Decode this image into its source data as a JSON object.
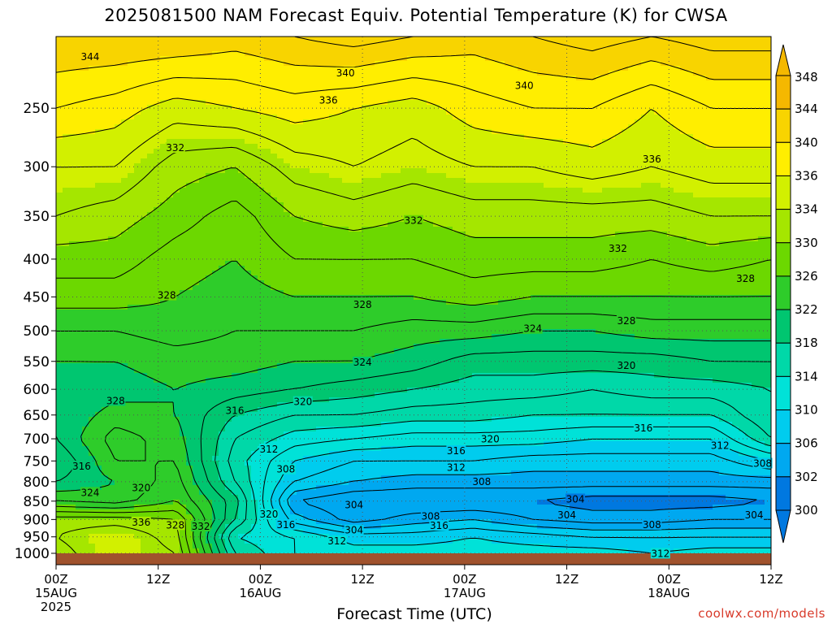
{
  "chart_data": {
    "type": "heatmap",
    "title": "2025081500 NAM Forecast Equiv. Potential Temperature (K) for CWSA",
    "xlabel": "Forecast Time (UTC)",
    "ylabel": "",
    "credit": "coolwx.com/models",
    "y_axis": {
      "scale": "log-pressure",
      "range": [
        200,
        1000
      ],
      "inverted": true,
      "ticks": [
        250,
        300,
        350,
        400,
        450,
        500,
        550,
        600,
        650,
        700,
        750,
        800,
        850,
        900,
        950,
        1000
      ]
    },
    "x_axis": {
      "range_hours": [
        0,
        84
      ],
      "ticks": [
        {
          "hour": 0,
          "label": "00Z",
          "date": "15AUG",
          "year": "2025"
        },
        {
          "hour": 12,
          "label": "12Z"
        },
        {
          "hour": 24,
          "label": "00Z",
          "date": "16AUG"
        },
        {
          "hour": 36,
          "label": "12Z"
        },
        {
          "hour": 48,
          "label": "00Z",
          "date": "17AUG"
        },
        {
          "hour": 60,
          "label": "12Z"
        },
        {
          "hour": 72,
          "label": "00Z",
          "date": "18AUG"
        },
        {
          "hour": 84,
          "label": "12Z"
        }
      ]
    },
    "grid": true,
    "colorbar": {
      "ticks": [
        348,
        344,
        340,
        336,
        334,
        330,
        326,
        322,
        318,
        314,
        310,
        306,
        302,
        300
      ],
      "bands": [
        {
          "value": 346,
          "color": "#f5b800"
        },
        {
          "value": 342,
          "color": "#f8d400"
        },
        {
          "value": 338,
          "color": "#ffee00"
        },
        {
          "value": 335,
          "color": "#d2f000"
        },
        {
          "value": 332,
          "color": "#a5e600"
        },
        {
          "value": 328,
          "color": "#6cd800"
        },
        {
          "value": 324,
          "color": "#2ecc2a"
        },
        {
          "value": 320,
          "color": "#00c670"
        },
        {
          "value": 316,
          "color": "#00d8a8"
        },
        {
          "value": 312,
          "color": "#00e2d8"
        },
        {
          "value": 308,
          "color": "#00ccee"
        },
        {
          "value": 304,
          "color": "#00a8f0"
        },
        {
          "value": 301,
          "color": "#0078e0"
        }
      ]
    },
    "levels_thetae": [
      {
        "p": 200,
        "values": [
          344,
          344,
          344,
          343,
          344,
          345,
          344,
          343,
          344,
          345,
          344,
          345,
          345
        ]
      },
      {
        "p": 250,
        "values": [
          340,
          339,
          337,
          338,
          339,
          338,
          337,
          339,
          340,
          340,
          338,
          340,
          340
        ]
      },
      {
        "p": 300,
        "values": [
          336,
          336,
          333,
          332,
          335,
          336,
          335,
          336,
          336,
          337,
          336,
          337,
          337
        ]
      },
      {
        "p": 350,
        "values": [
          334,
          333,
          331,
          329,
          332,
          333,
          332,
          333,
          333,
          333,
          333,
          334,
          334
        ]
      },
      {
        "p": 400,
        "values": [
          331,
          331,
          329,
          328,
          330,
          330,
          330,
          331,
          331,
          331,
          330,
          331,
          330
        ]
      },
      {
        "p": 450,
        "values": [
          329,
          329,
          328,
          327,
          328,
          328,
          328,
          329,
          328,
          328,
          328,
          328,
          328
        ]
      },
      {
        "p": 500,
        "values": [
          326,
          326,
          327,
          326,
          326,
          326,
          325,
          325,
          324,
          324,
          325,
          325,
          325
        ]
      },
      {
        "p": 550,
        "values": [
          324,
          324,
          325,
          325,
          324,
          324,
          323,
          321,
          321,
          321,
          321,
          322,
          322
        ]
      },
      {
        "p": 600,
        "values": [
          322,
          323,
          324,
          323,
          322,
          321,
          320,
          319,
          319,
          318,
          319,
          319,
          320
        ]
      },
      {
        "p": 650,
        "values": [
          322,
          325,
          324,
          320,
          318,
          318,
          317,
          317,
          316,
          316,
          316,
          316,
          320
        ]
      },
      {
        "p": 700,
        "values": [
          322,
          327,
          325,
          318,
          315,
          314,
          313,
          313,
          313,
          312,
          312,
          312,
          318
        ]
      },
      {
        "p": 750,
        "values": [
          320,
          326,
          326,
          317,
          312,
          310,
          310,
          310,
          309,
          309,
          309,
          309,
          312
        ]
      },
      {
        "p": 800,
        "values": [
          322,
          324,
          327,
          318,
          310,
          308,
          307,
          307,
          307,
          307,
          307,
          307,
          307
        ]
      },
      {
        "p": 850,
        "values": [
          326,
          325,
          328,
          321,
          306,
          304,
          304,
          304,
          304,
          303,
          303,
          303,
          304
        ]
      },
      {
        "p": 900,
        "values": [
          333,
          333,
          332,
          320,
          309,
          305,
          307,
          308,
          306,
          305,
          305,
          306,
          306
        ]
      },
      {
        "p": 950,
        "values": [
          334,
          336,
          333,
          316,
          314,
          311,
          311,
          312,
          311,
          310,
          310,
          310,
          310
        ]
      },
      {
        "p": 1000,
        "values": [
          333,
          336,
          334,
          318,
          314,
          313,
          313,
          313,
          313,
          313,
          312,
          313,
          313
        ]
      }
    ],
    "contour_labels": [
      {
        "text": "344",
        "hour": 4,
        "p": 213
      },
      {
        "text": "340",
        "hour": 34,
        "p": 224
      },
      {
        "text": "340",
        "hour": 55,
        "p": 233
      },
      {
        "text": "336",
        "hour": 32,
        "p": 244
      },
      {
        "text": "332",
        "hour": 14,
        "p": 283
      },
      {
        "text": "336",
        "hour": 70,
        "p": 293
      },
      {
        "text": "332",
        "hour": 42,
        "p": 355
      },
      {
        "text": "332",
        "hour": 66,
        "p": 387
      },
      {
        "text": "328",
        "hour": 81,
        "p": 425
      },
      {
        "text": "328",
        "hour": 13,
        "p": 448
      },
      {
        "text": "328",
        "hour": 36,
        "p": 461
      },
      {
        "text": "328",
        "hour": 67,
        "p": 485
      },
      {
        "text": "324",
        "hour": 56,
        "p": 497
      },
      {
        "text": "324",
        "hour": 36,
        "p": 552
      },
      {
        "text": "320",
        "hour": 67,
        "p": 557
      },
      {
        "text": "328",
        "hour": 7,
        "p": 622
      },
      {
        "text": "320",
        "hour": 29,
        "p": 624
      },
      {
        "text": "316",
        "hour": 21,
        "p": 641
      },
      {
        "text": "316",
        "hour": 69,
        "p": 677
      },
      {
        "text": "320",
        "hour": 51,
        "p": 701
      },
      {
        "text": "312",
        "hour": 25,
        "p": 723
      },
      {
        "text": "316",
        "hour": 47,
        "p": 727
      },
      {
        "text": "312",
        "hour": 78,
        "p": 715
      },
      {
        "text": "316",
        "hour": 3,
        "p": 763
      },
      {
        "text": "308",
        "hour": 27,
        "p": 770
      },
      {
        "text": "312",
        "hour": 47,
        "p": 766
      },
      {
        "text": "308",
        "hour": 83,
        "p": 756
      },
      {
        "text": "320",
        "hour": 10,
        "p": 816
      },
      {
        "text": "324",
        "hour": 4,
        "p": 828
      },
      {
        "text": "308",
        "hour": 50,
        "p": 800
      },
      {
        "text": "304",
        "hour": 35,
        "p": 860
      },
      {
        "text": "304",
        "hour": 61,
        "p": 845
      },
      {
        "text": "320",
        "hour": 25,
        "p": 886
      },
      {
        "text": "304",
        "hour": 60,
        "p": 888
      },
      {
        "text": "304",
        "hour": 82,
        "p": 888
      },
      {
        "text": "308",
        "hour": 44,
        "p": 891
      },
      {
        "text": "336",
        "hour": 10,
        "p": 908
      },
      {
        "text": "316",
        "hour": 27,
        "p": 915
      },
      {
        "text": "328",
        "hour": 14,
        "p": 916
      },
      {
        "text": "332",
        "hour": 17,
        "p": 920
      },
      {
        "text": "316",
        "hour": 45,
        "p": 918
      },
      {
        "text": "308",
        "hour": 70,
        "p": 915
      },
      {
        "text": "304",
        "hour": 35,
        "p": 931
      },
      {
        "text": "312",
        "hour": 33,
        "p": 963
      },
      {
        "text": "312",
        "hour": 71,
        "p": 1001
      }
    ]
  }
}
